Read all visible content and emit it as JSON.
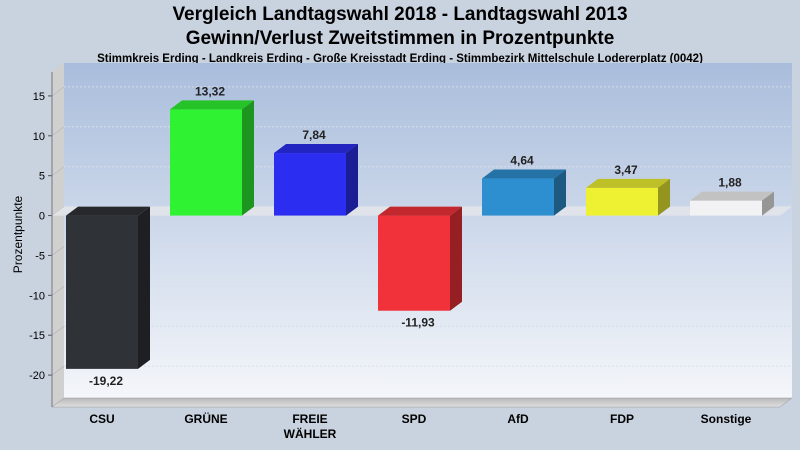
{
  "chart_data": {
    "type": "bar",
    "title": "Vergleich Landtagswahl 2018 - Landtagswahl 2013",
    "title2": "Gewinn/Verlust Zweitstimmen in Prozentpunkte",
    "subtitle": "Stimmkreis Erding - Landkreis Erding - Große Kreisstadt Erding - Stimmbezirk Mittelschule Lodererplatz (0042)",
    "ylabel": "Prozentpunkte",
    "ylim": [
      -24,
      18
    ],
    "yticks": [
      15,
      10,
      5,
      0,
      -5,
      -10,
      -15,
      -20
    ],
    "grid": true,
    "categories": [
      [
        "CSU"
      ],
      [
        "GRÜNE"
      ],
      [
        "FREIE",
        "WÄHLER"
      ],
      [
        "SPD"
      ],
      [
        "AfD"
      ],
      [
        "FDP"
      ],
      [
        "Sonstige"
      ]
    ],
    "values": [
      -19.22,
      13.32,
      7.84,
      -11.93,
      4.64,
      3.47,
      1.88
    ],
    "value_labels": [
      "-19,22",
      "13,32",
      "7,84",
      "-11,93",
      "4,64",
      "3,47",
      "1,88"
    ],
    "colors": [
      "#2f3237",
      "#2ef232",
      "#2b2ef0",
      "#f2323a",
      "#2e8fd0",
      "#eef032",
      "#f2f2f4"
    ]
  }
}
